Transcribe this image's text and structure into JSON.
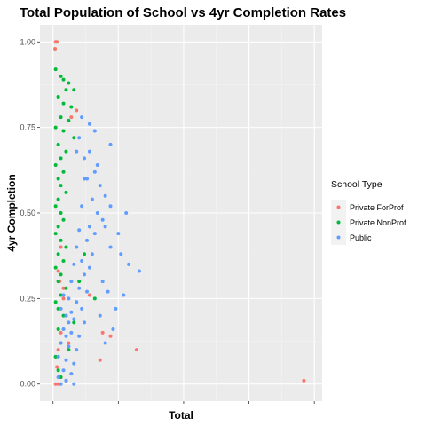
{
  "chart_data": {
    "type": "scatter",
    "title": "Total Population of School vs 4yr Completion Rates",
    "xlabel": "Total",
    "ylabel": "4yr Completion",
    "ylim": [
      -0.05,
      1.05
    ],
    "yticks": [
      "0.00",
      "0.25",
      "0.50",
      "0.75",
      "1.00"
    ],
    "ytick_values": [
      0,
      0.25,
      0.5,
      0.75,
      1.0
    ],
    "xticks_labels_shown": false,
    "grid": true,
    "legend": {
      "title": "School Type",
      "placement": "right"
    },
    "series": [
      {
        "name": "Private ForProf",
        "color": "#F8766D",
        "points": [
          {
            "x": 0.01,
            "y": 1.0
          },
          {
            "x": 0.015,
            "y": 1.0
          },
          {
            "x": 0.008,
            "y": 0.98
          },
          {
            "x": 0.09,
            "y": 0.8
          },
          {
            "x": 0.07,
            "y": 0.78
          },
          {
            "x": 0.03,
            "y": 0.4
          },
          {
            "x": 0.02,
            "y": 0.33
          },
          {
            "x": 0.025,
            "y": 0.3
          },
          {
            "x": 0.04,
            "y": 0.25
          },
          {
            "x": 0.05,
            "y": 0.2
          },
          {
            "x": 0.03,
            "y": 0.15
          },
          {
            "x": 0.06,
            "y": 0.12
          },
          {
            "x": 0.02,
            "y": 0.1
          },
          {
            "x": 0.01,
            "y": 0.08
          },
          {
            "x": 0.015,
            "y": 0.05
          },
          {
            "x": 0.03,
            "y": 0.02
          },
          {
            "x": 0.02,
            "y": 0.0
          },
          {
            "x": 0.01,
            "y": 0.0
          },
          {
            "x": 0.05,
            "y": 0.01
          },
          {
            "x": 0.04,
            "y": 0.28
          },
          {
            "x": 0.19,
            "y": 0.15
          },
          {
            "x": 0.14,
            "y": 0.26
          },
          {
            "x": 0.22,
            "y": 0.14
          },
          {
            "x": 0.18,
            "y": 0.07
          },
          {
            "x": 0.32,
            "y": 0.1
          },
          {
            "x": 0.96,
            "y": 0.01
          }
        ]
      },
      {
        "name": "Private NonProf",
        "color": "#00BA38",
        "points": [
          {
            "x": 0.01,
            "y": 0.92
          },
          {
            "x": 0.03,
            "y": 0.9
          },
          {
            "x": 0.04,
            "y": 0.89
          },
          {
            "x": 0.06,
            "y": 0.88
          },
          {
            "x": 0.05,
            "y": 0.86
          },
          {
            "x": 0.08,
            "y": 0.86
          },
          {
            "x": 0.02,
            "y": 0.84
          },
          {
            "x": 0.04,
            "y": 0.82
          },
          {
            "x": 0.07,
            "y": 0.81
          },
          {
            "x": 0.03,
            "y": 0.78
          },
          {
            "x": 0.06,
            "y": 0.77
          },
          {
            "x": 0.01,
            "y": 0.75
          },
          {
            "x": 0.04,
            "y": 0.74
          },
          {
            "x": 0.08,
            "y": 0.72
          },
          {
            "x": 0.02,
            "y": 0.7
          },
          {
            "x": 0.05,
            "y": 0.68
          },
          {
            "x": 0.03,
            "y": 0.66
          },
          {
            "x": 0.01,
            "y": 0.64
          },
          {
            "x": 0.04,
            "y": 0.62
          },
          {
            "x": 0.02,
            "y": 0.6
          },
          {
            "x": 0.03,
            "y": 0.58
          },
          {
            "x": 0.05,
            "y": 0.56
          },
          {
            "x": 0.02,
            "y": 0.54
          },
          {
            "x": 0.01,
            "y": 0.52
          },
          {
            "x": 0.03,
            "y": 0.5
          },
          {
            "x": 0.04,
            "y": 0.48
          },
          {
            "x": 0.02,
            "y": 0.46
          },
          {
            "x": 0.01,
            "y": 0.44
          },
          {
            "x": 0.03,
            "y": 0.42
          },
          {
            "x": 0.05,
            "y": 0.4
          },
          {
            "x": 0.02,
            "y": 0.38
          },
          {
            "x": 0.04,
            "y": 0.36
          },
          {
            "x": 0.01,
            "y": 0.34
          },
          {
            "x": 0.03,
            "y": 0.32
          },
          {
            "x": 0.02,
            "y": 0.3
          },
          {
            "x": 0.05,
            "y": 0.28
          },
          {
            "x": 0.03,
            "y": 0.26
          },
          {
            "x": 0.01,
            "y": 0.24
          },
          {
            "x": 0.02,
            "y": 0.22
          },
          {
            "x": 0.04,
            "y": 0.2
          },
          {
            "x": 0.02,
            "y": 0.16
          },
          {
            "x": 0.03,
            "y": 0.12
          },
          {
            "x": 0.01,
            "y": 0.08
          },
          {
            "x": 0.02,
            "y": 0.04
          },
          {
            "x": 0.03,
            "y": 0.02
          },
          {
            "x": 0.16,
            "y": 0.25
          },
          {
            "x": 0.1,
            "y": 0.3
          },
          {
            "x": 0.12,
            "y": 0.38
          },
          {
            "x": 0.08,
            "y": 0.18
          },
          {
            "x": 0.06,
            "y": 0.1
          }
        ]
      },
      {
        "name": "Public",
        "color": "#619CFF",
        "points": [
          {
            "x": 0.14,
            "y": 0.68
          },
          {
            "x": 0.12,
            "y": 0.66
          },
          {
            "x": 0.16,
            "y": 0.62
          },
          {
            "x": 0.18,
            "y": 0.58
          },
          {
            "x": 0.13,
            "y": 0.6
          },
          {
            "x": 0.2,
            "y": 0.55
          },
          {
            "x": 0.15,
            "y": 0.54
          },
          {
            "x": 0.11,
            "y": 0.52
          },
          {
            "x": 0.17,
            "y": 0.5
          },
          {
            "x": 0.22,
            "y": 0.52
          },
          {
            "x": 0.19,
            "y": 0.48
          },
          {
            "x": 0.14,
            "y": 0.46
          },
          {
            "x": 0.1,
            "y": 0.45
          },
          {
            "x": 0.16,
            "y": 0.44
          },
          {
            "x": 0.13,
            "y": 0.42
          },
          {
            "x": 0.09,
            "y": 0.4
          },
          {
            "x": 0.15,
            "y": 0.38
          },
          {
            "x": 0.11,
            "y": 0.36
          },
          {
            "x": 0.08,
            "y": 0.35
          },
          {
            "x": 0.14,
            "y": 0.34
          },
          {
            "x": 0.12,
            "y": 0.32
          },
          {
            "x": 0.07,
            "y": 0.3
          },
          {
            "x": 0.1,
            "y": 0.28
          },
          {
            "x": 0.13,
            "y": 0.27
          },
          {
            "x": 0.06,
            "y": 0.25
          },
          {
            "x": 0.09,
            "y": 0.24
          },
          {
            "x": 0.11,
            "y": 0.22
          },
          {
            "x": 0.05,
            "y": 0.2
          },
          {
            "x": 0.08,
            "y": 0.19
          },
          {
            "x": 0.12,
            "y": 0.18
          },
          {
            "x": 0.04,
            "y": 0.16
          },
          {
            "x": 0.07,
            "y": 0.15
          },
          {
            "x": 0.1,
            "y": 0.14
          },
          {
            "x": 0.03,
            "y": 0.12
          },
          {
            "x": 0.06,
            "y": 0.11
          },
          {
            "x": 0.09,
            "y": 0.1
          },
          {
            "x": 0.02,
            "y": 0.08
          },
          {
            "x": 0.05,
            "y": 0.07
          },
          {
            "x": 0.08,
            "y": 0.06
          },
          {
            "x": 0.04,
            "y": 0.04
          },
          {
            "x": 0.07,
            "y": 0.03
          },
          {
            "x": 0.02,
            "y": 0.02
          },
          {
            "x": 0.05,
            "y": 0.01
          },
          {
            "x": 0.08,
            "y": 0.0
          },
          {
            "x": 0.03,
            "y": 0.0
          },
          {
            "x": 0.06,
            "y": 0.18
          },
          {
            "x": 0.04,
            "y": 0.26
          },
          {
            "x": 0.03,
            "y": 0.22
          },
          {
            "x": 0.07,
            "y": 0.21
          },
          {
            "x": 0.05,
            "y": 0.14
          },
          {
            "x": 0.09,
            "y": 0.68
          },
          {
            "x": 0.1,
            "y": 0.72
          },
          {
            "x": 0.12,
            "y": 0.6
          },
          {
            "x": 0.17,
            "y": 0.64
          },
          {
            "x": 0.19,
            "y": 0.3
          },
          {
            "x": 0.21,
            "y": 0.27
          },
          {
            "x": 0.24,
            "y": 0.22
          },
          {
            "x": 0.18,
            "y": 0.2
          },
          {
            "x": 0.23,
            "y": 0.16
          },
          {
            "x": 0.2,
            "y": 0.12
          },
          {
            "x": 0.26,
            "y": 0.38
          },
          {
            "x": 0.29,
            "y": 0.35
          },
          {
            "x": 0.33,
            "y": 0.33
          },
          {
            "x": 0.27,
            "y": 0.26
          },
          {
            "x": 0.22,
            "y": 0.4
          },
          {
            "x": 0.2,
            "y": 0.46
          },
          {
            "x": 0.25,
            "y": 0.44
          },
          {
            "x": 0.28,
            "y": 0.5
          },
          {
            "x": 0.22,
            "y": 0.7
          },
          {
            "x": 0.16,
            "y": 0.74
          },
          {
            "x": 0.11,
            "y": 0.78
          },
          {
            "x": 0.14,
            "y": 0.76
          }
        ]
      }
    ]
  }
}
